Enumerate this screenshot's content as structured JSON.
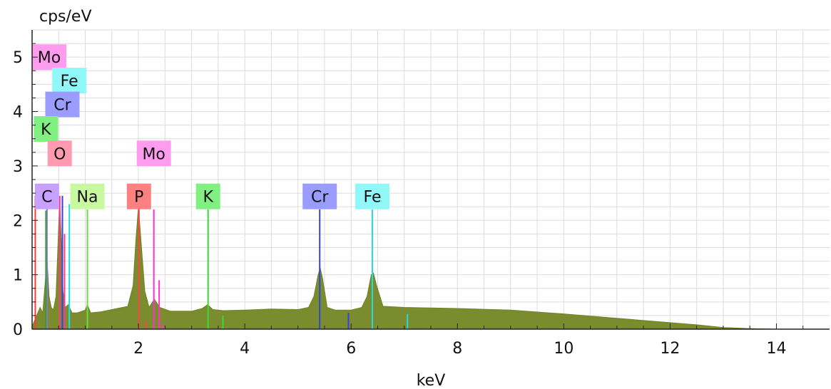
{
  "chart_data": {
    "type": "area",
    "ylabel": "cps/eV",
    "xlabel": "keV",
    "xlim": [
      0.0,
      15.0
    ],
    "ylim": [
      0,
      5.5
    ],
    "x_ticks": [
      2,
      4,
      6,
      8,
      10,
      12,
      14
    ],
    "y_ticks": [
      0,
      1,
      2,
      3,
      4,
      5
    ],
    "grid": true,
    "series_color": "#7a8c2e",
    "spectrum": {
      "x": [
        0.0,
        0.15,
        0.2,
        0.25,
        0.28,
        0.32,
        0.36,
        0.4,
        0.45,
        0.5,
        0.52,
        0.55,
        0.58,
        0.62,
        0.68,
        0.75,
        0.85,
        1.0,
        1.04,
        1.1,
        1.3,
        1.6,
        1.8,
        1.9,
        1.95,
        2.0,
        2.05,
        2.12,
        2.2,
        2.3,
        2.4,
        2.6,
        3.0,
        3.2,
        3.3,
        3.4,
        3.6,
        4.0,
        4.5,
        5.0,
        5.2,
        5.3,
        5.38,
        5.42,
        5.46,
        5.55,
        5.7,
        6.0,
        6.2,
        6.3,
        6.38,
        6.42,
        6.48,
        6.6,
        7.0,
        8.0,
        9.0,
        10.0,
        11.0,
        12.0,
        12.5,
        13.0,
        13.5,
        14.0,
        15.0
      ],
      "y": [
        0.05,
        0.4,
        0.3,
        0.9,
        1.3,
        0.6,
        0.4,
        0.35,
        0.6,
        1.9,
        2.3,
        1.6,
        0.7,
        0.4,
        0.45,
        0.3,
        0.3,
        0.35,
        0.45,
        0.3,
        0.32,
        0.38,
        0.42,
        0.8,
        1.6,
        2.25,
        1.6,
        0.7,
        0.4,
        0.55,
        0.4,
        0.33,
        0.33,
        0.38,
        0.45,
        0.36,
        0.34,
        0.35,
        0.37,
        0.36,
        0.4,
        0.6,
        1.0,
        1.12,
        0.95,
        0.4,
        0.35,
        0.35,
        0.4,
        0.6,
        1.0,
        1.03,
        0.8,
        0.42,
        0.4,
        0.38,
        0.35,
        0.28,
        0.2,
        0.12,
        0.08,
        0.03,
        0.01,
        0.0,
        0.0
      ]
    },
    "element_markers": [
      {
        "label": "Mo",
        "x": 0.05,
        "label_y": 5.0
      },
      {
        "label": "Fe",
        "x": 0.7,
        "label_y": 4.57
      },
      {
        "label": "Cr",
        "x": 0.57,
        "label_y": 4.13
      },
      {
        "label": "K",
        "x": 0.26,
        "label_y": 3.68
      },
      {
        "label": "O",
        "x": 0.52,
        "label_y": 3.23
      },
      {
        "label": "Mo",
        "x": 2.29,
        "label_y": 3.23
      },
      {
        "label": "C",
        "x": 0.28,
        "label_y": 2.44
      },
      {
        "label": "Na",
        "x": 1.04,
        "label_y": 2.44
      },
      {
        "label": "P",
        "x": 2.01,
        "label_y": 2.44
      },
      {
        "label": "K",
        "x": 3.31,
        "label_y": 2.44
      },
      {
        "label": "Cr",
        "x": 5.41,
        "label_y": 2.44
      },
      {
        "label": "Fe",
        "x": 6.4,
        "label_y": 2.44
      }
    ],
    "marker_lines": [
      {
        "x": 0.06,
        "height": 2.45,
        "color": "#ff3b3b"
      },
      {
        "x": 0.28,
        "height": 2.45,
        "color": "#b060ff"
      },
      {
        "x": 0.26,
        "height": 2.18,
        "color": "#22aa22"
      },
      {
        "x": 0.52,
        "height": 2.45,
        "color": "#ff3b80"
      },
      {
        "x": 0.57,
        "height": 2.45,
        "color": "#3344dd"
      },
      {
        "x": 0.61,
        "height": 1.75,
        "color": "#ff3b80"
      },
      {
        "x": 0.7,
        "height": 2.3,
        "color": "#22dddd"
      },
      {
        "x": 1.04,
        "height": 2.2,
        "color": "#66dd44"
      },
      {
        "x": 2.01,
        "height": 2.45,
        "color": "#ff4444"
      },
      {
        "x": 2.14,
        "height": 0.15,
        "color": "#ff4444"
      },
      {
        "x": 2.29,
        "height": 2.2,
        "color": "#ff33cc"
      },
      {
        "x": 2.39,
        "height": 0.9,
        "color": "#ff33cc"
      },
      {
        "x": 2.46,
        "height": 0.1,
        "color": "#ff33cc"
      },
      {
        "x": 3.31,
        "height": 2.2,
        "color": "#33dd33"
      },
      {
        "x": 3.59,
        "height": 0.25,
        "color": "#33dd33"
      },
      {
        "x": 5.41,
        "height": 2.2,
        "color": "#3344dd"
      },
      {
        "x": 5.95,
        "height": 0.3,
        "color": "#3344dd"
      },
      {
        "x": 6.4,
        "height": 2.2,
        "color": "#22dddd"
      },
      {
        "x": 7.06,
        "height": 0.28,
        "color": "#22dddd"
      }
    ],
    "element_colors": {
      "C": {
        "bg": "#c8a0ff",
        "line": "#b060ff"
      },
      "O": {
        "bg": "#ff9ab0",
        "line": "#ff3b80"
      },
      "Na": {
        "bg": "#c8f8a0",
        "line": "#66dd44"
      },
      "P": {
        "bg": "#ff8080",
        "line": "#ff4444"
      },
      "Mo": {
        "bg": "#ff9cf0",
        "line": "#ff33cc"
      },
      "K": {
        "bg": "#80f080",
        "line": "#33dd33"
      },
      "Cr": {
        "bg": "#9a9cff",
        "line": "#3344dd"
      },
      "Fe": {
        "bg": "#90f8f8",
        "line": "#22dddd"
      }
    }
  }
}
